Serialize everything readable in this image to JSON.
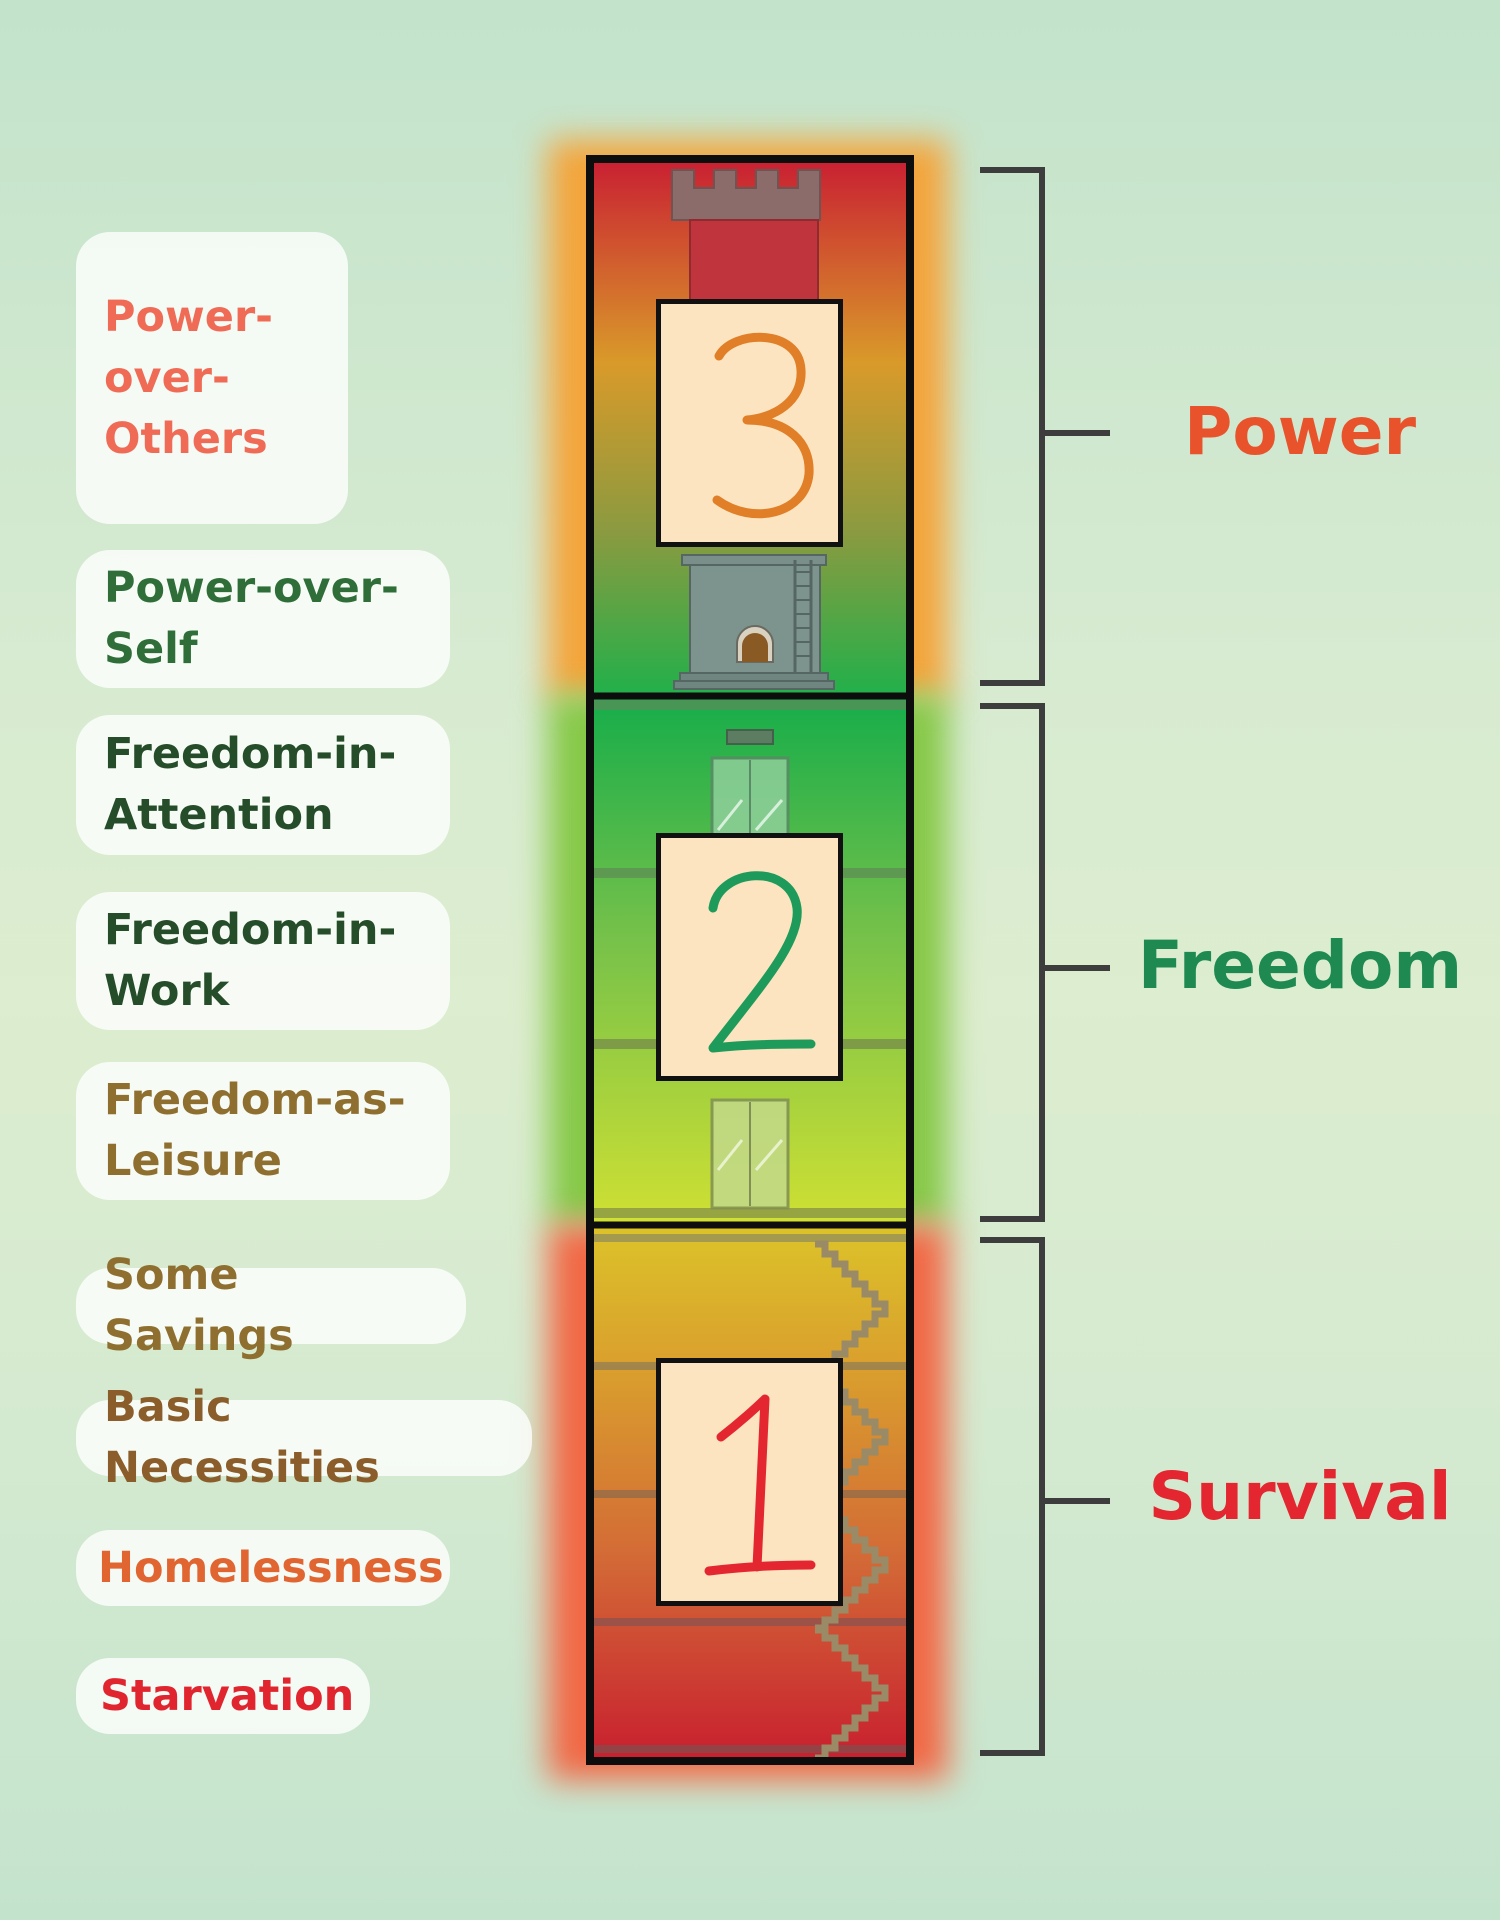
{
  "levels": [
    {
      "label": "Power-\nover-\nOthers",
      "color": "#ef6b55"
    },
    {
      "label": "Power-over-\nSelf",
      "color": "#2f6e38"
    },
    {
      "label": "Freedom-in-\nAttention",
      "color": "#254d2a"
    },
    {
      "label": "Freedom-in-\nWork",
      "color": "#254d2a"
    },
    {
      "label": "Freedom-as-\nLeisure",
      "color": "#8f6f2f"
    },
    {
      "label": "Some Savings",
      "color": "#8f6f2f"
    },
    {
      "label": "Basic Necessities",
      "color": "#8a5d2a"
    },
    {
      "label": "Homelessness",
      "color": "#e06530"
    },
    {
      "label": "Starvation",
      "color": "#e0252f"
    }
  ],
  "groups": [
    {
      "name": "Power",
      "numeral": "3",
      "color": "#e8532c",
      "numeral_color": "#e07f27"
    },
    {
      "name": "Freedom",
      "numeral": "2",
      "color": "#1e8a52",
      "numeral_color": "#1e9a5a"
    },
    {
      "name": "Survival",
      "numeral": "1",
      "color": "#e3262f",
      "numeral_color": "#e3262f"
    }
  ]
}
